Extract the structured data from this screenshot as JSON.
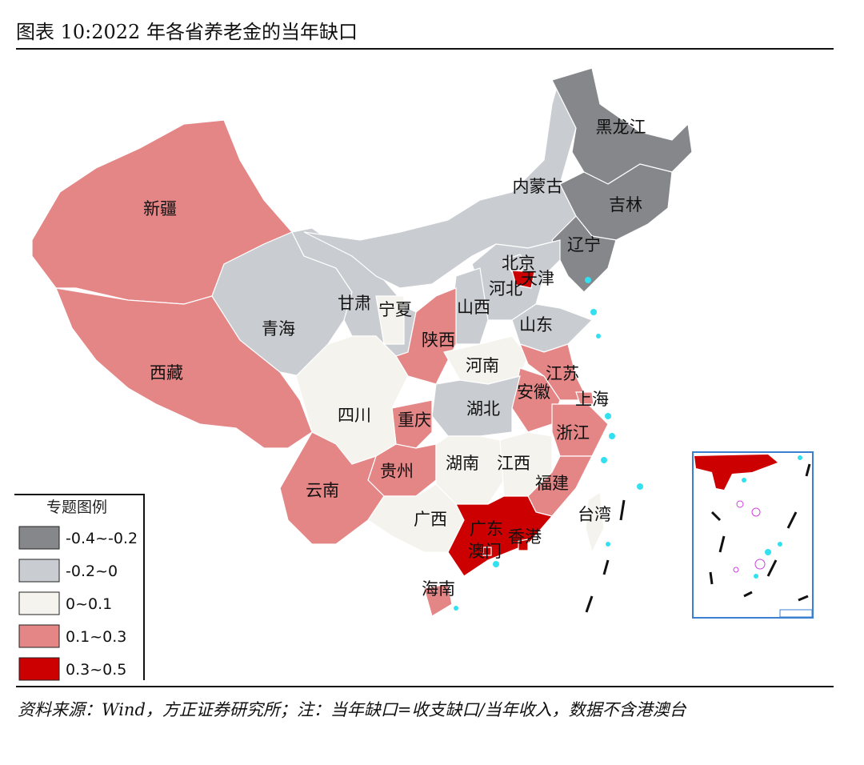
{
  "header": {
    "title": "图表 10:2022 年各省养老金的当年缺口"
  },
  "legend": {
    "title": "专题图例",
    "items": [
      {
        "label": "-0.4~-0.2",
        "color": "#85878a"
      },
      {
        "label": "-0.2~0",
        "color": "#c9ccd0"
      },
      {
        "label": "0~0.1",
        "color": "#f4f3ed"
      },
      {
        "label": "0.1~0.3",
        "color": "#e48586"
      },
      {
        "label": "0.3~0.5",
        "color": "#cc0000"
      }
    ]
  },
  "provinces": [
    {
      "name": "新疆",
      "color": "#e48586"
    },
    {
      "name": "西藏",
      "color": "#e48586"
    },
    {
      "name": "青海",
      "color": "#c9ccd0"
    },
    {
      "name": "甘肃",
      "color": "#c9ccd0"
    },
    {
      "name": "宁夏",
      "color": "#f4f3ed"
    },
    {
      "name": "内蒙古",
      "color": "#c9ccd0"
    },
    {
      "name": "黑龙江",
      "color": "#85878a"
    },
    {
      "name": "吉林",
      "color": "#85878a"
    },
    {
      "name": "辽宁",
      "color": "#85878a"
    },
    {
      "name": "河北",
      "color": "#c9ccd0"
    },
    {
      "name": "北京",
      "color": "#c9ccd0"
    },
    {
      "name": "天津",
      "color": "#cc0000"
    },
    {
      "name": "山西",
      "color": "#c9ccd0"
    },
    {
      "name": "山东",
      "color": "#c9ccd0"
    },
    {
      "name": "陕西",
      "color": "#e48586"
    },
    {
      "name": "河南",
      "color": "#f4f3ed"
    },
    {
      "name": "江苏",
      "color": "#e48586"
    },
    {
      "name": "上海",
      "color": "#e48586"
    },
    {
      "name": "安徽",
      "color": "#e48586"
    },
    {
      "name": "浙江",
      "color": "#e48586"
    },
    {
      "name": "湖北",
      "color": "#c9ccd0"
    },
    {
      "name": "重庆",
      "color": "#e48586"
    },
    {
      "name": "四川",
      "color": "#f4f3ed"
    },
    {
      "name": "贵州",
      "color": "#e48586"
    },
    {
      "name": "云南",
      "color": "#e48586"
    },
    {
      "name": "湖南",
      "color": "#f4f3ed"
    },
    {
      "name": "江西",
      "color": "#f4f3ed"
    },
    {
      "name": "福建",
      "color": "#e48586"
    },
    {
      "name": "广西",
      "color": "#f4f3ed"
    },
    {
      "name": "广东",
      "color": "#cc0000"
    },
    {
      "name": "海南",
      "color": "#e48586"
    },
    {
      "name": "台湾",
      "color": "#f4f3ed"
    },
    {
      "name": "香港",
      "color": "#cc0000"
    },
    {
      "name": "澳门",
      "color": "#cc0000"
    }
  ],
  "footer": {
    "note": "资料来源：Wind，方正证券研究所；注：当年缺口=收支缺口/当年收入，数据不含港澳台"
  }
}
